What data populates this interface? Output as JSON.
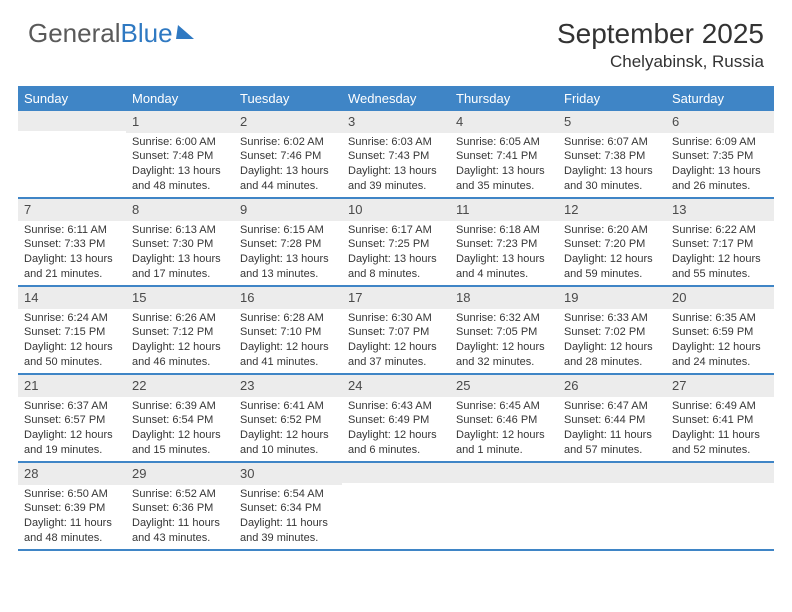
{
  "brand": {
    "text1": "General",
    "text2": "Blue"
  },
  "title": "September 2025",
  "location": "Chelyabinsk, Russia",
  "colors": {
    "header_bg": "#3f85c6",
    "header_text": "#ffffff",
    "date_band_bg": "#ececec",
    "body_text": "#363636",
    "brand_gray": "#5a5a5a",
    "brand_blue": "#2f79c2"
  },
  "day_names": [
    "Sunday",
    "Monday",
    "Tuesday",
    "Wednesday",
    "Thursday",
    "Friday",
    "Saturday"
  ],
  "weeks": [
    [
      {
        "date": "",
        "sunrise": "",
        "sunset": "",
        "daylight": ""
      },
      {
        "date": "1",
        "sunrise": "Sunrise: 6:00 AM",
        "sunset": "Sunset: 7:48 PM",
        "daylight": "Daylight: 13 hours and 48 minutes."
      },
      {
        "date": "2",
        "sunrise": "Sunrise: 6:02 AM",
        "sunset": "Sunset: 7:46 PM",
        "daylight": "Daylight: 13 hours and 44 minutes."
      },
      {
        "date": "3",
        "sunrise": "Sunrise: 6:03 AM",
        "sunset": "Sunset: 7:43 PM",
        "daylight": "Daylight: 13 hours and 39 minutes."
      },
      {
        "date": "4",
        "sunrise": "Sunrise: 6:05 AM",
        "sunset": "Sunset: 7:41 PM",
        "daylight": "Daylight: 13 hours and 35 minutes."
      },
      {
        "date": "5",
        "sunrise": "Sunrise: 6:07 AM",
        "sunset": "Sunset: 7:38 PM",
        "daylight": "Daylight: 13 hours and 30 minutes."
      },
      {
        "date": "6",
        "sunrise": "Sunrise: 6:09 AM",
        "sunset": "Sunset: 7:35 PM",
        "daylight": "Daylight: 13 hours and 26 minutes."
      }
    ],
    [
      {
        "date": "7",
        "sunrise": "Sunrise: 6:11 AM",
        "sunset": "Sunset: 7:33 PM",
        "daylight": "Daylight: 13 hours and 21 minutes."
      },
      {
        "date": "8",
        "sunrise": "Sunrise: 6:13 AM",
        "sunset": "Sunset: 7:30 PM",
        "daylight": "Daylight: 13 hours and 17 minutes."
      },
      {
        "date": "9",
        "sunrise": "Sunrise: 6:15 AM",
        "sunset": "Sunset: 7:28 PM",
        "daylight": "Daylight: 13 hours and 13 minutes."
      },
      {
        "date": "10",
        "sunrise": "Sunrise: 6:17 AM",
        "sunset": "Sunset: 7:25 PM",
        "daylight": "Daylight: 13 hours and 8 minutes."
      },
      {
        "date": "11",
        "sunrise": "Sunrise: 6:18 AM",
        "sunset": "Sunset: 7:23 PM",
        "daylight": "Daylight: 13 hours and 4 minutes."
      },
      {
        "date": "12",
        "sunrise": "Sunrise: 6:20 AM",
        "sunset": "Sunset: 7:20 PM",
        "daylight": "Daylight: 12 hours and 59 minutes."
      },
      {
        "date": "13",
        "sunrise": "Sunrise: 6:22 AM",
        "sunset": "Sunset: 7:17 PM",
        "daylight": "Daylight: 12 hours and 55 minutes."
      }
    ],
    [
      {
        "date": "14",
        "sunrise": "Sunrise: 6:24 AM",
        "sunset": "Sunset: 7:15 PM",
        "daylight": "Daylight: 12 hours and 50 minutes."
      },
      {
        "date": "15",
        "sunrise": "Sunrise: 6:26 AM",
        "sunset": "Sunset: 7:12 PM",
        "daylight": "Daylight: 12 hours and 46 minutes."
      },
      {
        "date": "16",
        "sunrise": "Sunrise: 6:28 AM",
        "sunset": "Sunset: 7:10 PM",
        "daylight": "Daylight: 12 hours and 41 minutes."
      },
      {
        "date": "17",
        "sunrise": "Sunrise: 6:30 AM",
        "sunset": "Sunset: 7:07 PM",
        "daylight": "Daylight: 12 hours and 37 minutes."
      },
      {
        "date": "18",
        "sunrise": "Sunrise: 6:32 AM",
        "sunset": "Sunset: 7:05 PM",
        "daylight": "Daylight: 12 hours and 32 minutes."
      },
      {
        "date": "19",
        "sunrise": "Sunrise: 6:33 AM",
        "sunset": "Sunset: 7:02 PM",
        "daylight": "Daylight: 12 hours and 28 minutes."
      },
      {
        "date": "20",
        "sunrise": "Sunrise: 6:35 AM",
        "sunset": "Sunset: 6:59 PM",
        "daylight": "Daylight: 12 hours and 24 minutes."
      }
    ],
    [
      {
        "date": "21",
        "sunrise": "Sunrise: 6:37 AM",
        "sunset": "Sunset: 6:57 PM",
        "daylight": "Daylight: 12 hours and 19 minutes."
      },
      {
        "date": "22",
        "sunrise": "Sunrise: 6:39 AM",
        "sunset": "Sunset: 6:54 PM",
        "daylight": "Daylight: 12 hours and 15 minutes."
      },
      {
        "date": "23",
        "sunrise": "Sunrise: 6:41 AM",
        "sunset": "Sunset: 6:52 PM",
        "daylight": "Daylight: 12 hours and 10 minutes."
      },
      {
        "date": "24",
        "sunrise": "Sunrise: 6:43 AM",
        "sunset": "Sunset: 6:49 PM",
        "daylight": "Daylight: 12 hours and 6 minutes."
      },
      {
        "date": "25",
        "sunrise": "Sunrise: 6:45 AM",
        "sunset": "Sunset: 6:46 PM",
        "daylight": "Daylight: 12 hours and 1 minute."
      },
      {
        "date": "26",
        "sunrise": "Sunrise: 6:47 AM",
        "sunset": "Sunset: 6:44 PM",
        "daylight": "Daylight: 11 hours and 57 minutes."
      },
      {
        "date": "27",
        "sunrise": "Sunrise: 6:49 AM",
        "sunset": "Sunset: 6:41 PM",
        "daylight": "Daylight: 11 hours and 52 minutes."
      }
    ],
    [
      {
        "date": "28",
        "sunrise": "Sunrise: 6:50 AM",
        "sunset": "Sunset: 6:39 PM",
        "daylight": "Daylight: 11 hours and 48 minutes."
      },
      {
        "date": "29",
        "sunrise": "Sunrise: 6:52 AM",
        "sunset": "Sunset: 6:36 PM",
        "daylight": "Daylight: 11 hours and 43 minutes."
      },
      {
        "date": "30",
        "sunrise": "Sunrise: 6:54 AM",
        "sunset": "Sunset: 6:34 PM",
        "daylight": "Daylight: 11 hours and 39 minutes."
      },
      {
        "date": "",
        "sunrise": "",
        "sunset": "",
        "daylight": ""
      },
      {
        "date": "",
        "sunrise": "",
        "sunset": "",
        "daylight": ""
      },
      {
        "date": "",
        "sunrise": "",
        "sunset": "",
        "daylight": ""
      },
      {
        "date": "",
        "sunrise": "",
        "sunset": "",
        "daylight": ""
      }
    ]
  ]
}
